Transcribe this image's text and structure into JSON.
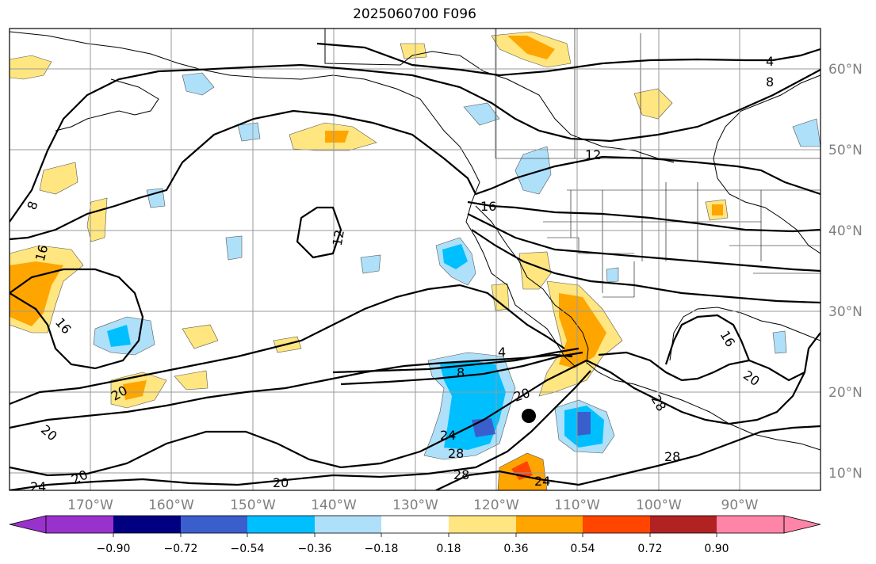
{
  "title": "2025060700 F096",
  "lat_labels": [
    "60°N",
    "50°N",
    "40°N",
    "30°N",
    "20°N",
    "10°N"
  ],
  "lon_labels": [
    "170°W",
    "160°W",
    "150°W",
    "140°W",
    "130°W",
    "120°W",
    "110°W",
    "100°W",
    "90°W"
  ],
  "colorbar": {
    "ticks": [
      "−0.90",
      "−0.72",
      "−0.54",
      "−0.36",
      "−0.18",
      "0.18",
      "0.36",
      "0.54",
      "0.72",
      "0.90"
    ],
    "colors": [
      "#9932cc",
      "#000080",
      "#3a5fcd",
      "#00bfff",
      "#aee0fa",
      "#ffffff",
      "#ffe680",
      "#ffa500",
      "#ff4500",
      "#b22222",
      "#ff85a8"
    ]
  },
  "contour_labels": [
    "4",
    "8",
    "12",
    "16",
    "12",
    "8",
    "16",
    "16",
    "20",
    "20",
    "24",
    "4",
    "8",
    "20",
    "24",
    "28",
    "28",
    "24",
    "28",
    "16",
    "20",
    "28",
    "20",
    "20"
  ],
  "marker": "storm-center"
}
